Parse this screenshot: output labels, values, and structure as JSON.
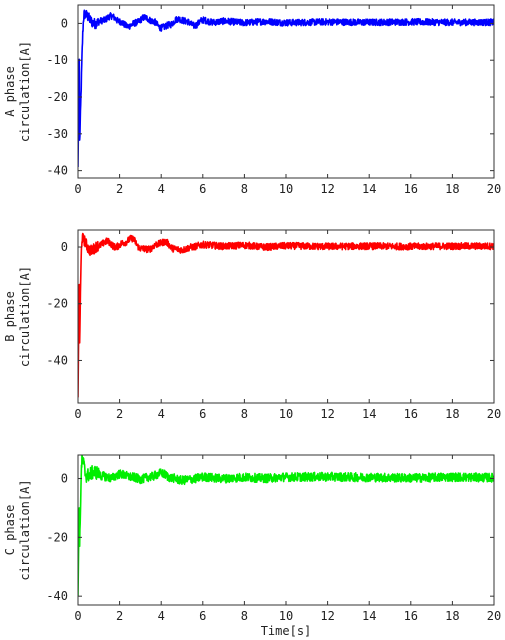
{
  "chart_data": [
    {
      "type": "line",
      "title": "",
      "xlabel": "",
      "ylabel": [
        "A phase",
        "circulation[A]"
      ],
      "xlim": [
        0,
        20
      ],
      "ylim": [
        -42,
        5
      ],
      "xticks": [
        "0",
        "2",
        "4",
        "6",
        "8",
        "10",
        "12",
        "14",
        "16",
        "18",
        "20"
      ],
      "yticks": [
        {
          "value": 0,
          "label": "0"
        },
        {
          "value": -10,
          "label": "-10"
        },
        {
          "value": -20,
          "label": "-20"
        },
        {
          "value": -30,
          "label": "-30"
        },
        {
          "value": -40,
          "label": "-40"
        }
      ],
      "series": [
        {
          "color": "#0000ff",
          "initial_min": -39,
          "x": [
            0,
            0.3,
            0.8,
            1.2,
            1.6,
            2.0,
            2.4,
            2.8,
            3.2,
            3.6,
            4.0,
            4.4,
            4.8,
            5.2,
            5.6,
            6.0,
            6.5,
            7.0,
            8.0,
            9.0,
            10.0,
            12.0,
            14.0,
            16.0,
            18.0,
            20.0
          ],
          "y": [
            -39,
            2.5,
            0.0,
            0.8,
            2.0,
            0.5,
            -0.8,
            0.2,
            1.6,
            0.6,
            -1.2,
            -0.4,
            1.2,
            0.6,
            -0.6,
            0.9,
            0.3,
            0.6,
            0.2,
            0.5,
            0.2,
            0.4,
            0.3,
            0.4,
            0.3,
            0.3
          ],
          "noise": 0.9
        }
      ]
    },
    {
      "type": "line",
      "title": "",
      "xlabel": "",
      "ylabel": [
        "B phase",
        "circulation[A]"
      ],
      "xlim": [
        0,
        20
      ],
      "ylim": [
        -55,
        6
      ],
      "xticks": [
        "0",
        "2",
        "4",
        "6",
        "8",
        "10",
        "12",
        "14",
        "16",
        "18",
        "20"
      ],
      "yticks": [
        {
          "value": 0,
          "label": "0"
        },
        {
          "value": -20,
          "label": "-20"
        },
        {
          "value": -40,
          "label": "-40"
        }
      ],
      "series": [
        {
          "color": "#ff0000",
          "initial_min": -53,
          "x": [
            0,
            0.2,
            0.6,
            1.0,
            1.4,
            1.8,
            2.2,
            2.6,
            3.0,
            3.4,
            3.8,
            4.2,
            4.6,
            5.0,
            5.5,
            6.0,
            7.0,
            8.0,
            9.0,
            10.0,
            12.0,
            14.0,
            16.0,
            18.0,
            20.0
          ],
          "y": [
            -53,
            3.0,
            -1.2,
            0.5,
            2.0,
            0.0,
            1.5,
            3.0,
            -0.5,
            -0.8,
            1.0,
            1.8,
            -0.6,
            -1.0,
            0.0,
            0.8,
            0.3,
            0.6,
            0.0,
            0.4,
            0.2,
            0.3,
            0.2,
            0.3,
            0.3
          ],
          "noise": 1.2
        }
      ]
    },
    {
      "type": "line",
      "title": "",
      "xlabel": "Time[s]",
      "ylabel": [
        "C phase",
        "circulation[A]"
      ],
      "xlim": [
        0,
        20
      ],
      "ylim": [
        -43,
        8
      ],
      "xticks": [
        "0",
        "2",
        "4",
        "6",
        "8",
        "10",
        "12",
        "14",
        "16",
        "18",
        "20"
      ],
      "yticks": [
        {
          "value": 0,
          "label": "0"
        },
        {
          "value": -20,
          "label": "-20"
        },
        {
          "value": -40,
          "label": "-40"
        }
      ],
      "series": [
        {
          "color": "#00ee00",
          "initial_min": -40,
          "x": [
            0,
            0.2,
            0.4,
            0.8,
            1.2,
            1.6,
            2.0,
            2.6,
            3.0,
            3.5,
            4.0,
            4.5,
            5.0,
            5.5,
            6.0,
            7.0,
            8.0,
            9.0,
            10.0,
            12.0,
            14.0,
            16.0,
            18.0,
            20.0
          ],
          "y": [
            -40,
            6.5,
            1.0,
            2.2,
            0.8,
            0.2,
            1.5,
            0.5,
            -0.2,
            0.6,
            1.8,
            0.2,
            -0.6,
            -0.2,
            0.5,
            0.0,
            0.4,
            0.1,
            0.5,
            0.6,
            0.4,
            0.2,
            0.5,
            0.3
          ],
          "noise": 1.5
        }
      ]
    }
  ]
}
